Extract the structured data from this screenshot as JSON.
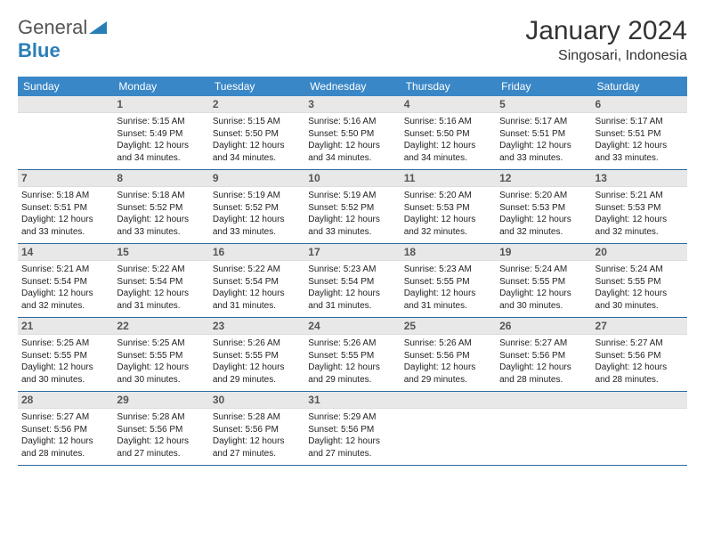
{
  "logo": {
    "general": "General",
    "blue": "Blue"
  },
  "title": "January 2024",
  "location": "Singosari, Indonesia",
  "header_bg": "#3a87c7",
  "row_divider": "#2c6a9e",
  "daynum_bg": "#e8e8e8",
  "weekdays": [
    "Sunday",
    "Monday",
    "Tuesday",
    "Wednesday",
    "Thursday",
    "Friday",
    "Saturday"
  ],
  "weeks": [
    [
      null,
      {
        "n": "1",
        "sr": "5:15 AM",
        "ss": "5:49 PM",
        "dl": "12 hours and 34 minutes."
      },
      {
        "n": "2",
        "sr": "5:15 AM",
        "ss": "5:50 PM",
        "dl": "12 hours and 34 minutes."
      },
      {
        "n": "3",
        "sr": "5:16 AM",
        "ss": "5:50 PM",
        "dl": "12 hours and 34 minutes."
      },
      {
        "n": "4",
        "sr": "5:16 AM",
        "ss": "5:50 PM",
        "dl": "12 hours and 34 minutes."
      },
      {
        "n": "5",
        "sr": "5:17 AM",
        "ss": "5:51 PM",
        "dl": "12 hours and 33 minutes."
      },
      {
        "n": "6",
        "sr": "5:17 AM",
        "ss": "5:51 PM",
        "dl": "12 hours and 33 minutes."
      }
    ],
    [
      {
        "n": "7",
        "sr": "5:18 AM",
        "ss": "5:51 PM",
        "dl": "12 hours and 33 minutes."
      },
      {
        "n": "8",
        "sr": "5:18 AM",
        "ss": "5:52 PM",
        "dl": "12 hours and 33 minutes."
      },
      {
        "n": "9",
        "sr": "5:19 AM",
        "ss": "5:52 PM",
        "dl": "12 hours and 33 minutes."
      },
      {
        "n": "10",
        "sr": "5:19 AM",
        "ss": "5:52 PM",
        "dl": "12 hours and 33 minutes."
      },
      {
        "n": "11",
        "sr": "5:20 AM",
        "ss": "5:53 PM",
        "dl": "12 hours and 32 minutes."
      },
      {
        "n": "12",
        "sr": "5:20 AM",
        "ss": "5:53 PM",
        "dl": "12 hours and 32 minutes."
      },
      {
        "n": "13",
        "sr": "5:21 AM",
        "ss": "5:53 PM",
        "dl": "12 hours and 32 minutes."
      }
    ],
    [
      {
        "n": "14",
        "sr": "5:21 AM",
        "ss": "5:54 PM",
        "dl": "12 hours and 32 minutes."
      },
      {
        "n": "15",
        "sr": "5:22 AM",
        "ss": "5:54 PM",
        "dl": "12 hours and 31 minutes."
      },
      {
        "n": "16",
        "sr": "5:22 AM",
        "ss": "5:54 PM",
        "dl": "12 hours and 31 minutes."
      },
      {
        "n": "17",
        "sr": "5:23 AM",
        "ss": "5:54 PM",
        "dl": "12 hours and 31 minutes."
      },
      {
        "n": "18",
        "sr": "5:23 AM",
        "ss": "5:55 PM",
        "dl": "12 hours and 31 minutes."
      },
      {
        "n": "19",
        "sr": "5:24 AM",
        "ss": "5:55 PM",
        "dl": "12 hours and 30 minutes."
      },
      {
        "n": "20",
        "sr": "5:24 AM",
        "ss": "5:55 PM",
        "dl": "12 hours and 30 minutes."
      }
    ],
    [
      {
        "n": "21",
        "sr": "5:25 AM",
        "ss": "5:55 PM",
        "dl": "12 hours and 30 minutes."
      },
      {
        "n": "22",
        "sr": "5:25 AM",
        "ss": "5:55 PM",
        "dl": "12 hours and 30 minutes."
      },
      {
        "n": "23",
        "sr": "5:26 AM",
        "ss": "5:55 PM",
        "dl": "12 hours and 29 minutes."
      },
      {
        "n": "24",
        "sr": "5:26 AM",
        "ss": "5:55 PM",
        "dl": "12 hours and 29 minutes."
      },
      {
        "n": "25",
        "sr": "5:26 AM",
        "ss": "5:56 PM",
        "dl": "12 hours and 29 minutes."
      },
      {
        "n": "26",
        "sr": "5:27 AM",
        "ss": "5:56 PM",
        "dl": "12 hours and 28 minutes."
      },
      {
        "n": "27",
        "sr": "5:27 AM",
        "ss": "5:56 PM",
        "dl": "12 hours and 28 minutes."
      }
    ],
    [
      {
        "n": "28",
        "sr": "5:27 AM",
        "ss": "5:56 PM",
        "dl": "12 hours and 28 minutes."
      },
      {
        "n": "29",
        "sr": "5:28 AM",
        "ss": "5:56 PM",
        "dl": "12 hours and 27 minutes."
      },
      {
        "n": "30",
        "sr": "5:28 AM",
        "ss": "5:56 PM",
        "dl": "12 hours and 27 minutes."
      },
      {
        "n": "31",
        "sr": "5:29 AM",
        "ss": "5:56 PM",
        "dl": "12 hours and 27 minutes."
      },
      null,
      null,
      null
    ]
  ]
}
